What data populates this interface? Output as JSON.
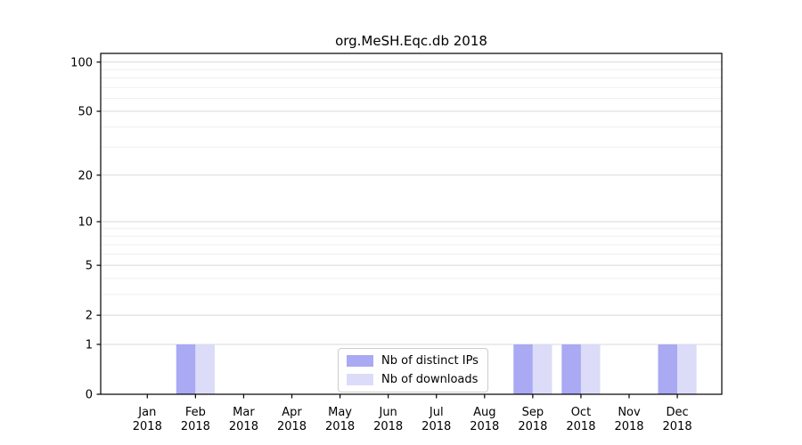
{
  "chart_data": {
    "type": "bar",
    "title": "org.MeSH.Eqc.db 2018",
    "categories": [
      "Jan 2018",
      "Feb 2018",
      "Mar 2018",
      "Apr 2018",
      "May 2018",
      "Jun 2018",
      "Jul 2018",
      "Aug 2018",
      "Sep 2018",
      "Oct 2018",
      "Nov 2018",
      "Dec 2018"
    ],
    "series": [
      {
        "name": "Nb of distinct IPs",
        "color": "#a9a9f4",
        "values": [
          0,
          1,
          0,
          0,
          0,
          0,
          0,
          0,
          1,
          1,
          0,
          1
        ]
      },
      {
        "name": "Nb of downloads",
        "color": "#dcdcf8",
        "values": [
          0,
          1,
          0,
          0,
          0,
          0,
          0,
          0,
          1,
          1,
          0,
          1
        ]
      }
    ],
    "xlabel": "",
    "ylabel": "",
    "yscale": "log1p",
    "ylim": [
      0,
      113
    ],
    "yticks": [
      0,
      1,
      2,
      5,
      10,
      20,
      50,
      100
    ],
    "yticks_minor": [
      3,
      4,
      6,
      7,
      8,
      9,
      30,
      40,
      60,
      70,
      80,
      90
    ],
    "grid": "horizontal",
    "legend_position": "inside-bottom-center",
    "colors": {
      "axis": "#000000",
      "grid_major": "#d9d9d9",
      "grid_minor": "#efefef",
      "legend_border": "#cccccc",
      "text": "#000000",
      "background": "#ffffff"
    }
  }
}
